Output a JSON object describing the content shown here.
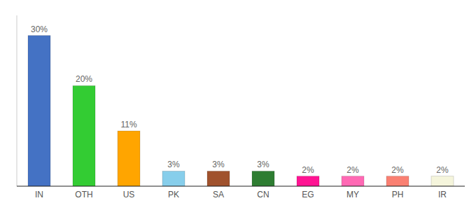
{
  "chart_data": {
    "type": "bar",
    "categories": [
      "IN",
      "OTH",
      "US",
      "PK",
      "SA",
      "CN",
      "EG",
      "MY",
      "PH",
      "IR"
    ],
    "values": [
      30,
      20,
      11,
      3,
      3,
      3,
      2,
      2,
      2,
      2
    ],
    "value_labels": [
      "30%",
      "20%",
      "11%",
      "3%",
      "3%",
      "3%",
      "2%",
      "2%",
      "2%",
      "2%"
    ],
    "colors": [
      "#4472C4",
      "#33CC33",
      "#FFA500",
      "#87CEEB",
      "#A0522D",
      "#2E7D32",
      "#FF1493",
      "#FF69B4",
      "#FA8072",
      "#F5F5DC"
    ],
    "ylim": [
      0,
      34
    ],
    "data_labels": true,
    "tick_labels": "x",
    "grid": false
  }
}
